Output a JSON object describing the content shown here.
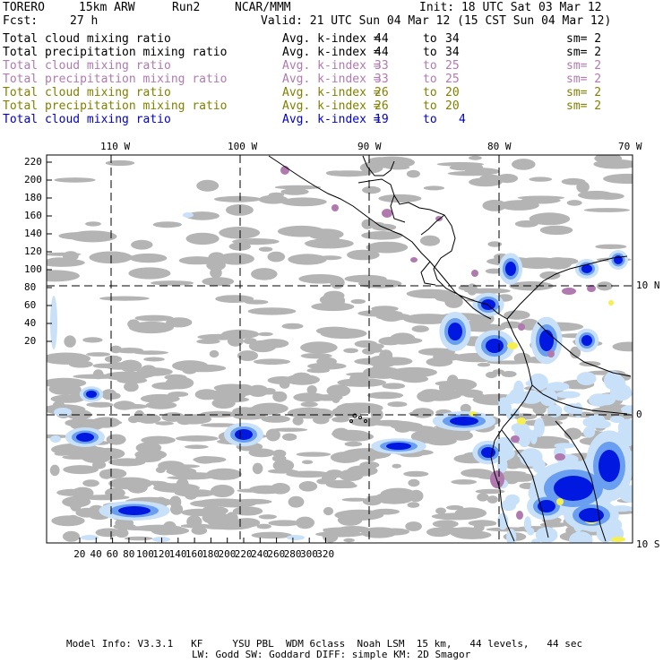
{
  "header": {
    "model": "TORERO",
    "resolution": "15km ARW",
    "run": "Run2",
    "org": "NCAR/MMM",
    "init": "Init: 18 UTC Sat 03 Mar 12",
    "fcst_label": "Fcst:",
    "fcst_value": "27 h",
    "valid": "Valid: 21 UTC Sun 04 Mar 12 (15 CST Sun 04 Mar 12)"
  },
  "legend": [
    {
      "field": "Total cloud mixing ratio",
      "avg": "Avg. k-index =",
      "from": "44",
      "to_word": "to",
      "to": "34",
      "sm": "sm= 2",
      "color": "#000000"
    },
    {
      "field": "Total precipitation mixing ratio",
      "avg": "Avg. k-index =",
      "from": "44",
      "to_word": "to",
      "to": "34",
      "sm": "sm= 2",
      "color": "#000000"
    },
    {
      "field": "Total cloud mixing ratio",
      "avg": "Avg. k-index =",
      "from": "33",
      "to_word": "to",
      "to": "25",
      "sm": "sm= 2",
      "color": "#b07ab0"
    },
    {
      "field": "Total precipitation mixing ratio",
      "avg": "Avg. k-index =",
      "from": "33",
      "to_word": "to",
      "to": "25",
      "sm": "sm= 2",
      "color": "#b07ab0"
    },
    {
      "field": "Total cloud mixing ratio",
      "avg": "Avg. k-index =",
      "from": "26",
      "to_word": "to",
      "to": "20",
      "sm": "sm= 2",
      "color": "#808000"
    },
    {
      "field": "Total precipitation mixing ratio",
      "avg": "Avg. k-index =",
      "from": "26",
      "to_word": "to",
      "to": "20",
      "sm": "sm= 2",
      "color": "#808000"
    },
    {
      "field": "Total cloud mixing ratio",
      "avg": "Avg. k-index =",
      "from": "19",
      "to_word": "to",
      "to": "4",
      "sm": "",
      "color": "#0000d0"
    }
  ],
  "axes": {
    "top_lon_labels": [
      "110 W",
      "100 W",
      "90 W",
      "80 W",
      "70 W"
    ],
    "right_lat_labels": [
      "10 N",
      "0",
      "10 S"
    ],
    "left_ticks": [
      "220",
      "200",
      "180",
      "160",
      "140",
      "120",
      "100",
      "80",
      "60",
      "40",
      "20"
    ],
    "bottom_ticks": [
      "20",
      "40",
      "60",
      "80",
      "100",
      "120",
      "140",
      "160",
      "180",
      "200",
      "220",
      "240",
      "260",
      "280",
      "300",
      "320"
    ]
  },
  "footer": {
    "line1": "Model Info: V3.3.1   KF     YSU PBL  WDM 6class  Noah LSM  15 km,   44 levels,   44 sec",
    "line2": "LW: Godd SW: Goddard DIFF: simple KM: 2D Smagor"
  },
  "colors": {
    "cloud_gray": "#b4b4b4",
    "purple": "#b07ab0",
    "yellow": "#f5f050",
    "blue_dark": "#0018e0",
    "blue_mid": "#6a9ef0",
    "blue_light": "#c8e0f8"
  }
}
